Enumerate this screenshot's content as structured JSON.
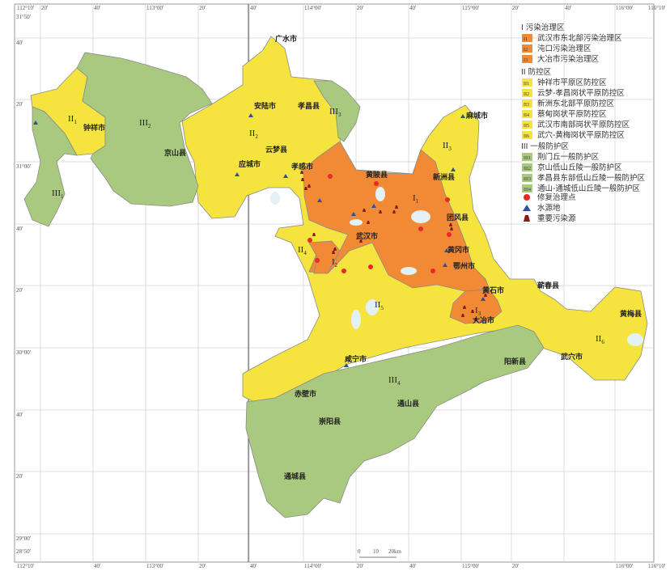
{
  "colors": {
    "pollution_zone": "#f08a35",
    "control_zone": "#f5e43e",
    "protection_zone": "#a9c97e",
    "repair_point": "#e8282a",
    "water_source": "#2d4fa0",
    "pollution_source": "#8b1a1a",
    "water": "#dfeef2",
    "grid": "#cccccc"
  },
  "top_ticks": [
    "112°10'",
    "20'",
    "40'",
    "113°00'",
    "20'",
    "40'",
    "114°00'",
    "20'",
    "40'",
    "115°00'",
    "20'",
    "40'",
    "116°00'",
    "116°10'"
  ],
  "left_ticks": [
    "31°50'",
    "40'",
    "20'",
    "31°00'",
    "40'",
    "20'",
    "30°00'",
    "40'",
    "20'",
    "29°00'",
    "28°50'"
  ],
  "bottom_ticks": [
    "112°10'",
    "40'",
    "113°00'",
    "20'",
    "40'",
    "114°00'",
    "20'",
    "40'",
    "115°00'",
    "20'",
    "116°00'",
    "116°10'"
  ],
  "cities": [
    "广水市",
    "安陆市",
    "孝昌县",
    "云梦县",
    "应城市",
    "孝感市",
    "黄陂县",
    "新洲县",
    "麻城市",
    "团风县",
    "武汉市",
    "钟祥市",
    "京山县",
    "黄冈市",
    "鄂州市",
    "黄石市",
    "大冶市",
    "蕲春县",
    "黄梅县",
    "武穴市",
    "阳新县",
    "咸宁市",
    "赤壁市",
    "通山县",
    "崇阳县",
    "通城县"
  ],
  "zones": [
    {
      "main": "I",
      "sub": "1"
    },
    {
      "main": "I",
      "sub": "2"
    },
    {
      "main": "I",
      "sub": "3"
    },
    {
      "main": "II",
      "sub": "1"
    },
    {
      "main": "II",
      "sub": "2"
    },
    {
      "main": "II",
      "sub": "3"
    },
    {
      "main": "II",
      "sub": "4"
    },
    {
      "main": "II",
      "sub": "5"
    },
    {
      "main": "II",
      "sub": "6"
    },
    {
      "main": "III",
      "sub": "1"
    },
    {
      "main": "III",
      "sub": "2"
    },
    {
      "main": "III",
      "sub": "3"
    },
    {
      "main": "III",
      "sub": "4"
    }
  ],
  "legend": {
    "group1": {
      "title": "I 污染治理区",
      "items": [
        {
          "code": "I1",
          "label": "武汉市东北部污染治理区"
        },
        {
          "code": "I2",
          "label": "沌口污染治理区"
        },
        {
          "code": "I3",
          "label": "大冶市污染治理区"
        }
      ]
    },
    "group2": {
      "title": "II 防控区",
      "items": [
        {
          "code": "II1",
          "label": "钟祥市平原区防控区"
        },
        {
          "code": "II2",
          "label": "云梦-孝昌岗状平原防控区"
        },
        {
          "code": "II3",
          "label": "新洲东北部平原防控区"
        },
        {
          "code": "II4",
          "label": "蔡甸岗状平原防控区"
        },
        {
          "code": "II5",
          "label": "武汉市南部岗状平原防控区"
        },
        {
          "code": "II6",
          "label": "武穴-黄梅岗状平原防控区"
        }
      ]
    },
    "group3": {
      "title": "III 一般防护区",
      "items": [
        {
          "code": "III1",
          "label": "荆门丘一般防护区"
        },
        {
          "code": "III2",
          "label": "京山低山丘陵一般防护区"
        },
        {
          "code": "III3",
          "label": "孝昌县东部低山丘陵一般防护区"
        },
        {
          "code": "III4",
          "label": "通山-通城低山丘陵一般防护区"
        }
      ]
    },
    "symbols": [
      {
        "icon": "red-circle",
        "label": "修复治理点"
      },
      {
        "icon": "blue-triangle",
        "label": "水源地"
      },
      {
        "icon": "brown-marker",
        "label": "重要污染源"
      }
    ]
  },
  "scale_bar": {
    "labels": [
      "0",
      "10",
      "20km"
    ]
  }
}
